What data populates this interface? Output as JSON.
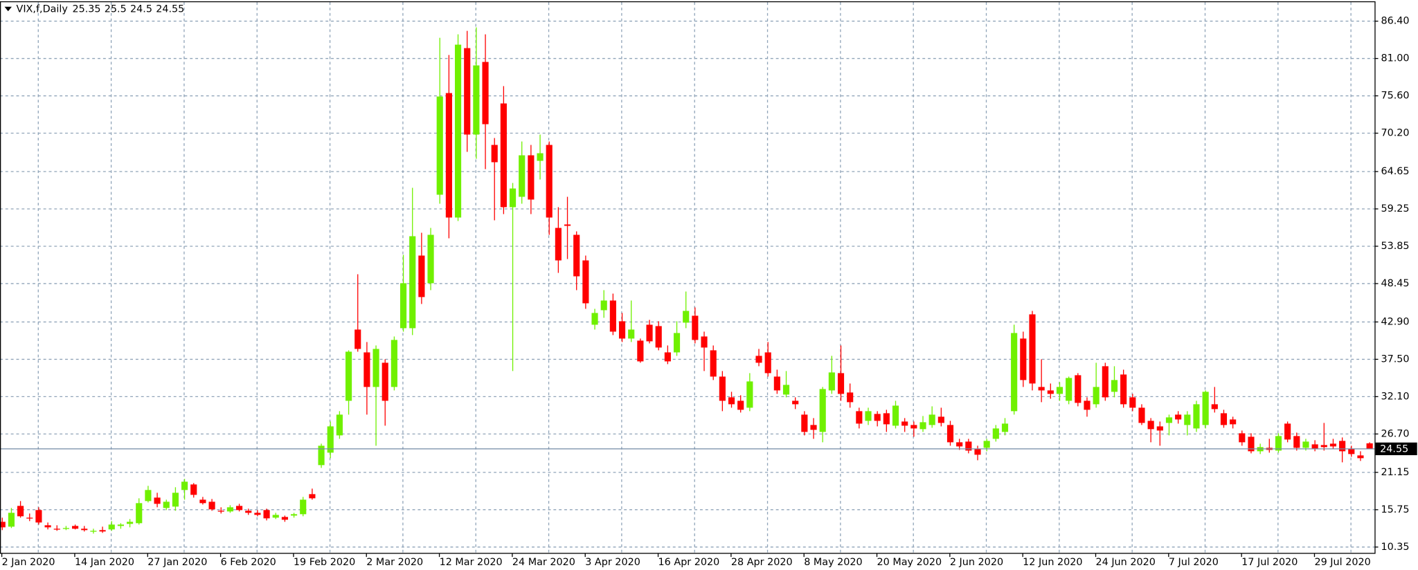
{
  "chart_data": {
    "type": "candlestick",
    "title": "VIX,f,Daily",
    "categories": [
      "2 Jan 2020",
      null,
      null,
      null,
      null,
      null,
      null,
      null,
      "14 Jan 2020",
      null,
      null,
      null,
      null,
      null,
      null,
      null,
      "27 Jan 2020",
      null,
      null,
      null,
      null,
      null,
      null,
      null,
      "6 Feb 2020",
      null,
      null,
      null,
      null,
      null,
      null,
      null,
      "19 Feb 2020",
      null,
      null,
      null,
      null,
      null,
      null,
      null,
      "2 Mar 2020",
      null,
      null,
      null,
      null,
      null,
      null,
      null,
      "12 Mar 2020",
      null,
      null,
      null,
      null,
      null,
      null,
      null,
      "24 Mar 2020",
      null,
      null,
      null,
      null,
      null,
      null,
      null,
      "3 Apr 2020",
      null,
      null,
      null,
      null,
      null,
      null,
      null,
      "16 Apr 2020",
      null,
      null,
      null,
      null,
      null,
      null,
      null,
      "28 Apr 2020",
      null,
      null,
      null,
      null,
      null,
      null,
      null,
      "8 May 2020",
      null,
      null,
      null,
      null,
      null,
      null,
      null,
      "20 May 2020",
      null,
      null,
      null,
      null,
      null,
      null,
      null,
      "2 Jun 2020",
      null,
      null,
      null,
      null,
      null,
      null,
      null,
      "12 Jun 2020",
      null,
      null,
      null,
      null,
      null,
      null,
      null,
      "24 Jun 2020",
      null,
      null,
      null,
      null,
      null,
      null,
      null,
      "7 Jul 2020",
      null,
      null,
      null,
      null,
      null,
      null,
      null,
      "17 Jul 2020",
      null,
      null,
      null,
      null,
      null,
      null,
      null,
      "29 Jul 2020",
      null,
      null,
      null,
      null,
      null,
      null
    ],
    "open": [
      14.0,
      13.3,
      16.3,
      14.6,
      15.7,
      13.5,
      13.0,
      13.0,
      13.4,
      13.0,
      12.6,
      12.8,
      12.9,
      13.4,
      13.7,
      13.8,
      17.0,
      17.5,
      16.0,
      16.2,
      18.6,
      19.4,
      17.2,
      16.9,
      15.6,
      15.5,
      16.3,
      15.6,
      15.3,
      15.7,
      14.6,
      14.7,
      14.9,
      15.1,
      18.0,
      22.2,
      24.0,
      26.5,
      31.5,
      41.8,
      38.5,
      33.5,
      37.0,
      33.5,
      42.0,
      42.0,
      52.5,
      48.5,
      61.3,
      76.0,
      58.0,
      82.5,
      70.0,
      80.5,
      68.5,
      74.5,
      59.5,
      61.0,
      67.0,
      66.2,
      68.5,
      56.5,
      57.0,
      55.5,
      51.8,
      42.5,
      44.6,
      46.0,
      43.0,
      40.5,
      40.2,
      42.5,
      42.3,
      38.5,
      38.5,
      42.8,
      43.8,
      40.8,
      38.8,
      35.0,
      32.0,
      31.5,
      30.5,
      38.0,
      38.5,
      35.0,
      32.4,
      31.5,
      29.5,
      28.0,
      27.0,
      33.0,
      35.5,
      32.7,
      30.0,
      28.6,
      29.6,
      29.7,
      27.9,
      28.5,
      28.0,
      27.4,
      28.0,
      29.2,
      28.0,
      25.5,
      25.6,
      24.5,
      24.7,
      26.0,
      27.0,
      30.0,
      40.5,
      44.0,
      33.5,
      33.0,
      32.5,
      31.5,
      35.2,
      31.5,
      31.0,
      36.5,
      32.8,
      35.3,
      32.0,
      30.5,
      28.6,
      27.8,
      28.3,
      29.5,
      28.0,
      27.5,
      28.0,
      31.0,
      29.7,
      28.8,
      26.8,
      26.3,
      24.2,
      24.7,
      24.3,
      28.2,
      26.4,
      24.7,
      25.2,
      25.1,
      25.3,
      25.7,
      24.5,
      23.6,
      25.35
    ],
    "high": [
      14.6,
      16.0,
      17.0,
      15.2,
      16.1,
      13.9,
      13.5,
      13.4,
      13.6,
      13.4,
      13.0,
      13.3,
      14.1,
      13.8,
      14.4,
      17.4,
      19.2,
      18.2,
      17.2,
      19.0,
      20.2,
      19.6,
      17.6,
      17.3,
      16.1,
      16.4,
      16.6,
      15.9,
      15.7,
      15.9,
      15.3,
      14.9,
      15.3,
      17.6,
      18.8,
      25.3,
      28.5,
      30.0,
      38.8,
      49.8,
      40.0,
      39.5,
      37.5,
      40.8,
      52.6,
      62.3,
      55.8,
      56.5,
      84.0,
      81.5,
      84.5,
      85.0,
      85.5,
      84.5,
      69.5,
      77.0,
      63.0,
      69.0,
      68.5,
      70.0,
      69.0,
      59.5,
      61.0,
      56.0,
      52.5,
      44.8,
      47.5,
      47.0,
      44.2,
      46.0,
      40.5,
      43.2,
      43.0,
      39.5,
      43.0,
      47.3,
      45.0,
      41.5,
      39.5,
      35.8,
      32.8,
      32.3,
      35.5,
      39.0,
      40.0,
      36.0,
      35.8,
      32.0,
      30.0,
      29.0,
      33.5,
      38.0,
      39.5,
      34.0,
      30.5,
      30.5,
      30.0,
      30.2,
      31.5,
      29.0,
      28.5,
      29.3,
      30.7,
      30.5,
      28.6,
      26.0,
      26.0,
      25.0,
      26.0,
      28.0,
      29.0,
      42.5,
      41.5,
      44.5,
      37.5,
      34.0,
      34.2,
      35.0,
      35.5,
      32.0,
      37.0,
      37.0,
      36.5,
      36.0,
      32.5,
      31.0,
      29.0,
      28.5,
      29.5,
      30.0,
      30.0,
      31.5,
      33.0,
      33.5,
      30.2,
      29.2,
      27.2,
      26.8,
      25.3,
      26.0,
      26.8,
      28.5,
      26.9,
      26.0,
      25.8,
      28.3,
      26.0,
      26.2,
      25.0,
      24.2,
      25.5
    ],
    "low": [
      12.8,
      13.1,
      14.6,
      14.1,
      13.6,
      12.9,
      12.7,
      12.8,
      12.9,
      12.6,
      12.3,
      12.4,
      12.7,
      13.0,
      13.2,
      13.6,
      16.8,
      16.1,
      15.7,
      15.6,
      17.2,
      17.5,
      16.5,
      15.6,
      15.2,
      15.3,
      15.5,
      15.0,
      14.8,
      14.2,
      14.4,
      14.0,
      14.6,
      14.8,
      17.2,
      21.8,
      23.2,
      26.0,
      29.5,
      38.6,
      29.5,
      25.0,
      27.9,
      33.0,
      41.5,
      41.0,
      45.5,
      47.5,
      60.0,
      55.0,
      57.5,
      67.5,
      66.5,
      65.0,
      57.6,
      58.5,
      35.8,
      60.0,
      58.5,
      63.5,
      55.5,
      50.0,
      52.0,
      47.5,
      44.8,
      41.8,
      43.5,
      41.0,
      40.0,
      40.0,
      37.0,
      39.8,
      38.8,
      36.8,
      38.0,
      42.0,
      39.8,
      35.8,
      34.5,
      30.0,
      30.5,
      29.8,
      30.0,
      36.5,
      35.0,
      32.5,
      32.0,
      30.3,
      26.5,
      26.0,
      25.5,
      32.5,
      31.5,
      30.5,
      27.5,
      28.0,
      27.8,
      27.0,
      27.5,
      27.0,
      26.3,
      27.0,
      27.6,
      27.8,
      25.0,
      24.4,
      23.9,
      22.9,
      24.2,
      25.6,
      26.5,
      29.5,
      33.5,
      33.0,
      31.3,
      31.8,
      31.5,
      31.0,
      30.7,
      29.2,
      30.5,
      31.5,
      32.0,
      30.5,
      30.0,
      28.0,
      25.5,
      25.0,
      26.5,
      28.2,
      26.5,
      27.0,
      27.5,
      29.8,
      27.6,
      27.5,
      25.0,
      23.9,
      23.8,
      24.0,
      24.0,
      25.5,
      24.3,
      24.3,
      24.2,
      24.3,
      24.5,
      22.6,
      23.4,
      22.8,
      24.5
    ],
    "close": [
      13.2,
      15.3,
      14.8,
      14.5,
      13.9,
      13.2,
      12.9,
      13.1,
      13.0,
      12.8,
      12.7,
      12.6,
      13.6,
      13.6,
      14.0,
      16.7,
      18.6,
      16.6,
      16.9,
      18.2,
      19.8,
      17.9,
      16.7,
      15.8,
      15.5,
      16.1,
      15.7,
      15.3,
      15.0,
      14.5,
      15.0,
      14.3,
      15.1,
      17.2,
      17.4,
      25.0,
      27.8,
      29.5,
      38.6,
      39.0,
      33.5,
      39.0,
      31.5,
      40.3,
      48.5,
      55.3,
      46.5,
      55.5,
      75.5,
      58.0,
      83.0,
      70.0,
      80.0,
      71.5,
      66.0,
      59.5,
      62.2,
      67.0,
      60.6,
      67.3,
      58.0,
      51.8,
      56.8,
      49.5,
      45.6,
      44.2,
      46.0,
      41.5,
      40.5,
      41.8,
      37.2,
      40.1,
      39.2,
      37.2,
      41.3,
      44.5,
      40.3,
      39.2,
      35.0,
      31.5,
      31.0,
      30.2,
      34.3,
      37.0,
      35.5,
      33.0,
      33.8,
      31.0,
      27.0,
      27.3,
      33.2,
      35.6,
      32.5,
      31.3,
      28.2,
      30.0,
      28.6,
      28.1,
      30.8,
      27.9,
      27.5,
      28.4,
      29.5,
      28.3,
      25.5,
      24.9,
      24.3,
      23.7,
      25.7,
      27.5,
      28.2,
      41.3,
      34.5,
      34.0,
      33.0,
      32.5,
      33.5,
      34.8,
      31.2,
      30.2,
      33.5,
      32.0,
      34.5,
      31.0,
      30.5,
      28.3,
      27.4,
      27.2,
      29.1,
      28.8,
      29.5,
      31.0,
      32.8,
      30.3,
      28.0,
      28.1,
      25.5,
      24.2,
      24.8,
      24.4,
      26.4,
      25.9,
      24.7,
      25.6,
      24.6,
      24.8,
      24.9,
      24.2,
      23.8,
      23.2,
      24.55
    ],
    "up_color": "#70f000",
    "down_color": "#ff0000",
    "ylim": [
      9.44,
      89.14
    ],
    "yticks": [
      {
        "value": 86.4,
        "label": "86.40"
      },
      {
        "value": 81,
        "label": "81.00"
      },
      {
        "value": 75.6,
        "label": "75.60"
      },
      {
        "value": 70.2,
        "label": "70.20"
      },
      {
        "value": 64.65,
        "label": "64.65"
      },
      {
        "value": 59.25,
        "label": "59.25"
      },
      {
        "value": 53.85,
        "label": "53.85"
      },
      {
        "value": 48.45,
        "label": "48.45"
      },
      {
        "value": 42.9,
        "label": "42.90"
      },
      {
        "value": 37.5,
        "label": "37.50"
      },
      {
        "value": 32.1,
        "label": "32.10"
      },
      {
        "value": 26.7,
        "label": "26.70"
      },
      {
        "value": 21.15,
        "label": "21.15"
      },
      {
        "value": 15.75,
        "label": "15.75"
      },
      {
        "value": 10.35,
        "label": "10.35"
      }
    ],
    "grid": true
  }
}
